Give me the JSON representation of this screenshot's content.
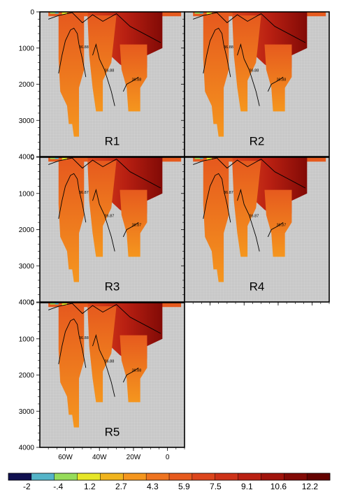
{
  "chart_data": {
    "type": "heatmap",
    "description_of_axes": "depth section: longitude vs depth",
    "x_tick_labels": [
      "60W",
      "40W",
      "20W",
      "0"
    ],
    "x_ticks": [
      -60,
      -40,
      -20,
      0
    ],
    "xlim": [
      -75,
      10
    ],
    "y_tick_labels": [
      "0",
      "1000",
      "2000",
      "3000",
      "4000"
    ],
    "y_ticks": [
      0,
      1000,
      2000,
      3000,
      4000
    ],
    "ylim": [
      0,
      4000
    ],
    "panels": [
      {
        "label": "R1",
        "contour_labels": [
          "36.88",
          "36.88",
          "36.88"
        ]
      },
      {
        "label": "R2",
        "contour_labels": [
          "36.88",
          "36.88",
          "36.88"
        ]
      },
      {
        "label": "R3",
        "contour_labels": [
          "36.87",
          "36.87",
          "36.87"
        ]
      },
      {
        "label": "R4",
        "contour_labels": [
          "36.87",
          "36.87",
          "36.87"
        ]
      },
      {
        "label": "R5",
        "contour_labels": [
          "36.88",
          "36.88",
          "36.88"
        ]
      }
    ],
    "colorbar": {
      "labels": [
        "-2",
        "-.4",
        "1.2",
        "2.7",
        "4.3",
        "5.9",
        "7.5",
        "9.1",
        "10.6",
        "12.2"
      ],
      "colors": [
        "#101050",
        "#54b4c8",
        "#96dc5a",
        "#e6e628",
        "#f0b41e",
        "#f5961e",
        "#ee7420",
        "#e65a1e",
        "#dc461c",
        "#cd3218",
        "#b92012",
        "#a0140c",
        "#820a06",
        "#640200"
      ]
    },
    "missing_value_color": "#c8c8c8"
  }
}
